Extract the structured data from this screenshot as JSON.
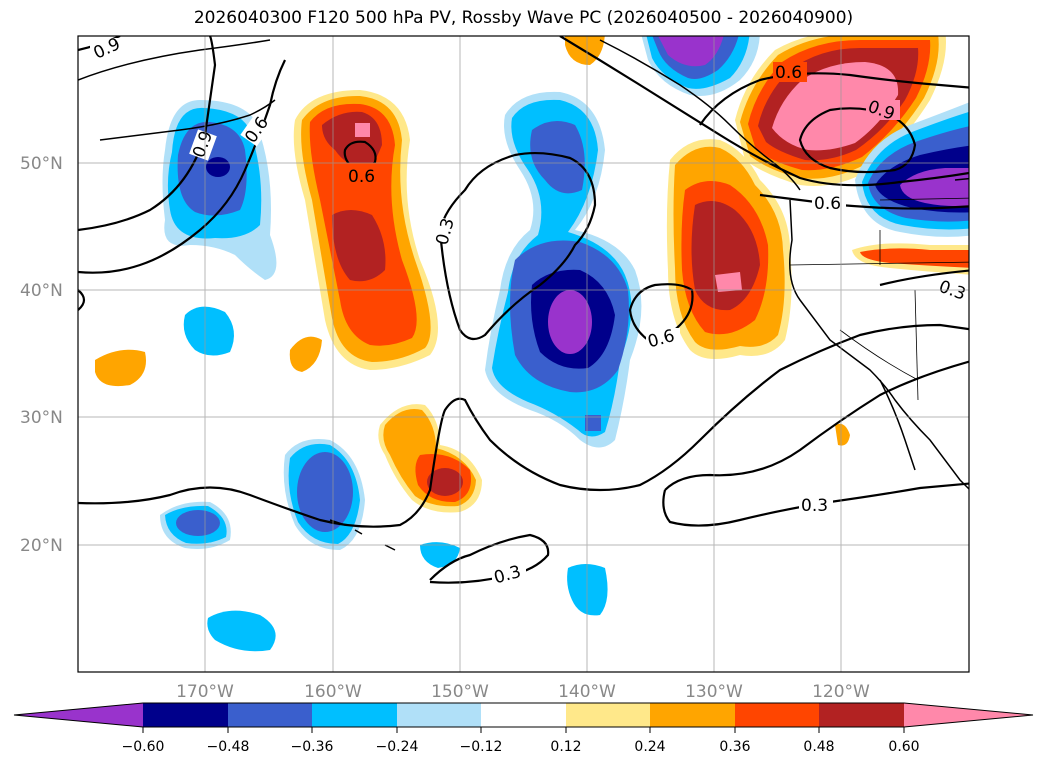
{
  "title": "2026040300 F120 500 hPa PV, Rossby Wave PC (2026040500 - 2026040900)",
  "map": {
    "lat_labels": [
      "50°N",
      "40°N",
      "30°N",
      "20°N"
    ],
    "lon_labels": [
      "170°W",
      "160°W",
      "150°W",
      "140°W",
      "130°W",
      "120°W"
    ],
    "contour_labels": [
      "0.9",
      "0.9",
      "0.6",
      "0.6",
      "0.3",
      "0.6",
      "0.6",
      "0.9",
      "0.6",
      "0.3",
      "0.3",
      "0.3"
    ]
  },
  "colorbar": {
    "ticks": [
      "−0.60",
      "−0.48",
      "−0.36",
      "−0.24",
      "−0.12",
      "0.12",
      "0.24",
      "0.36",
      "0.48",
      "0.60"
    ],
    "colors": [
      "#9933cc",
      "#00008b",
      "#3a5fcd",
      "#00bfff",
      "#b0e0f8",
      "#ffffff",
      "#ffe88a",
      "#ffa500",
      "#ff4500",
      "#b22222",
      "#ff88aa"
    ]
  }
}
